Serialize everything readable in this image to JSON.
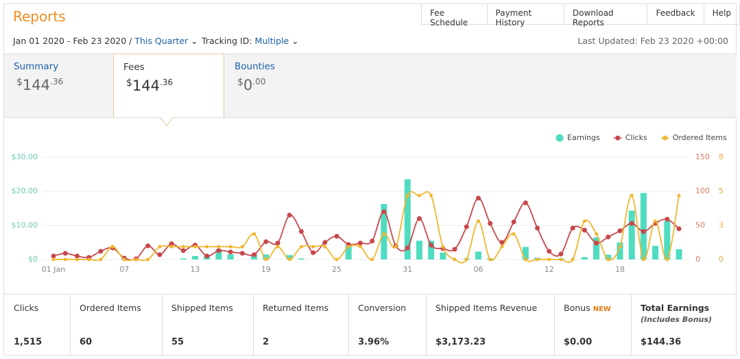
{
  "header": {
    "title": "Reports",
    "links": [
      "Fee Schedule",
      "Payment History",
      "Download Reports",
      "Feedback",
      "Help"
    ],
    "date_range": "Jan 01 2020 - Feb 23 2020",
    "separator": "/",
    "period": "This Quarter",
    "tracking_label": "Tracking ID:",
    "tracking_value": "Multiple",
    "last_updated": "Last Updated: Feb 23 2020 +00:00"
  },
  "tabs": [
    {
      "label": "Summary",
      "currency": "$",
      "whole": "144",
      "cents": ".36"
    },
    {
      "label": "Fees",
      "currency": "$",
      "whole": "144",
      "cents": ".36"
    },
    {
      "label": "Bounties",
      "currency": "$",
      "whole": "0",
      "cents": ".00"
    }
  ],
  "chart_data": {
    "type": "combo",
    "categories": [
      "01 Jan",
      null,
      null,
      null,
      null,
      null,
      "07",
      null,
      null,
      null,
      null,
      null,
      "13",
      null,
      null,
      null,
      null,
      null,
      "19",
      null,
      null,
      null,
      null,
      null,
      "25",
      null,
      null,
      null,
      null,
      null,
      "31",
      null,
      null,
      null,
      null,
      null,
      "06",
      null,
      null,
      null,
      null,
      null,
      "12",
      null,
      null,
      null,
      null,
      null,
      "18",
      null,
      null,
      null,
      null,
      null
    ],
    "series": [
      {
        "name": "Earnings",
        "type": "bar",
        "color": "#4fdcc0",
        "axis": "y",
        "values": [
          0,
          0,
          0,
          0,
          0,
          0,
          0.5,
          0,
          0,
          0,
          0,
          0.3,
          1,
          1,
          3,
          1.5,
          0,
          1.5,
          1.5,
          0,
          1.3,
          0.3,
          0,
          0,
          0,
          4,
          0,
          0,
          16.3,
          0,
          23.5,
          5.5,
          5.5,
          2,
          0,
          0.3,
          2.3,
          0.3,
          0,
          0,
          3.7,
          0.5,
          0,
          0.3,
          0,
          0.7,
          6.5,
          1.4,
          5,
          14.3,
          19.5,
          4,
          11.3,
          3
        ]
      },
      {
        "name": "Clicks",
        "type": "line",
        "color": "#c8474c",
        "axis": "y2",
        "values": [
          5,
          9,
          5,
          3,
          12,
          17,
          2,
          1,
          20,
          7,
          23,
          13,
          21,
          5,
          13,
          11,
          9,
          7,
          26,
          24,
          65,
          41,
          10,
          25,
          34,
          22,
          24,
          27,
          70,
          20,
          17,
          60,
          21,
          16,
          15,
          48,
          90,
          53,
          25,
          55,
          83,
          46,
          12,
          8,
          46,
          43,
          24,
          33,
          42,
          53,
          41,
          53,
          59,
          45
        ]
      },
      {
        "name": "Ordered Items",
        "type": "line",
        "color": "#f0b62e",
        "axis": "y3",
        "values": [
          0,
          0,
          0,
          0,
          0,
          1,
          0,
          0,
          0,
          1,
          1,
          1,
          1,
          1,
          1,
          1,
          1,
          2,
          0,
          1,
          0,
          1,
          1,
          1,
          0,
          1,
          1,
          0,
          2,
          1,
          5,
          5,
          5,
          1,
          0,
          0,
          3,
          0,
          1,
          2,
          0,
          0,
          0,
          0,
          0,
          3,
          2,
          0,
          1,
          5,
          0,
          3,
          0,
          5
        ]
      }
    ],
    "ylim": [
      0,
      30
    ],
    "yticks": [
      {
        "value": 0,
        "label": "$0"
      },
      {
        "value": 10,
        "label": "$10.00"
      },
      {
        "value": 20,
        "label": "$20.00"
      },
      {
        "value": 30,
        "label": "$30.00"
      }
    ],
    "y2lim": [
      0,
      150
    ],
    "y2ticks": [
      0,
      50,
      100,
      150
    ],
    "y3lim": [
      0,
      8
    ],
    "y3ticks": [
      0,
      {
        "value": 2.667,
        "label": "3"
      },
      {
        "value": 5.333,
        "label": "5"
      },
      8
    ],
    "grid": true,
    "legend": "top-right"
  },
  "summary": [
    {
      "label": "Clicks",
      "value": "1,515"
    },
    {
      "label": "Ordered Items",
      "value": "60"
    },
    {
      "label": "Shipped Items",
      "value": "55"
    },
    {
      "label": "Returned Items",
      "value": "2"
    },
    {
      "label": "Conversion",
      "value": "3.96%"
    },
    {
      "label": "Shipped Items Revenue",
      "value": "$3,173.23"
    },
    {
      "label": "Bonus",
      "badge": "NEW",
      "value": "$0.00"
    },
    {
      "label": "Total Earnings",
      "note": "(Includes Bonus)",
      "value": "$144.36"
    }
  ]
}
